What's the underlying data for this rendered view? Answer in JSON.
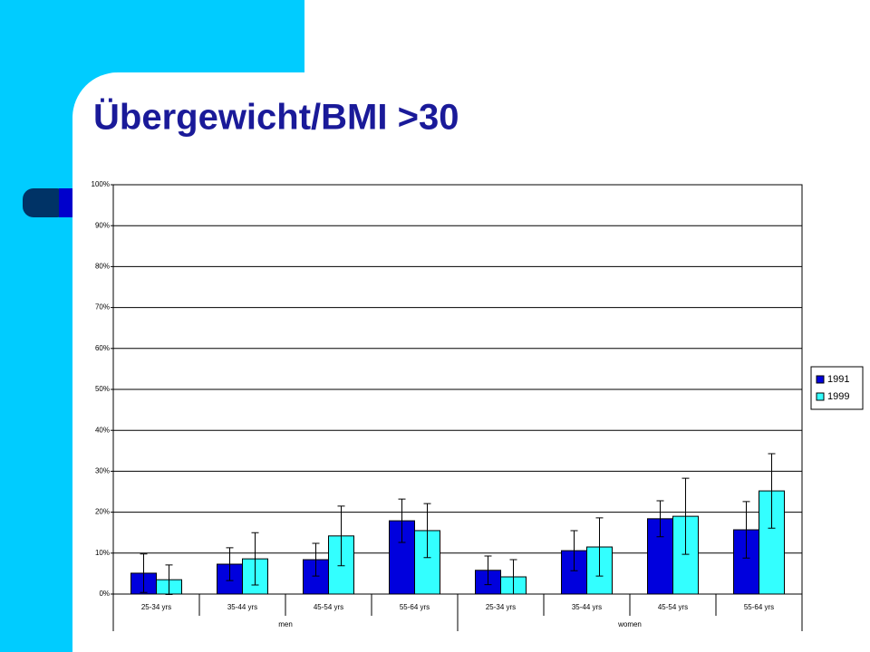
{
  "chart_data": {
    "type": "bar",
    "title": "Übergewicht/BMI >30",
    "categories": [
      "25-34 yrs",
      "35-44 yrs",
      "45-54 yrs",
      "55-64 yrs",
      "25-34 yrs",
      "35-44 yrs",
      "45-54 yrs",
      "55-64 yrs"
    ],
    "group_labels": [
      "men",
      "women"
    ],
    "series": [
      {
        "name": "1991",
        "color": "#0000dd",
        "values": [
          5.1,
          7.3,
          8.4,
          17.9,
          5.8,
          10.6,
          18.4,
          15.7
        ],
        "errors": [
          4.7,
          4.0,
          4.0,
          5.3,
          3.5,
          4.9,
          4.4,
          6.9
        ]
      },
      {
        "name": "1999",
        "color": "#33ffff",
        "values": [
          3.5,
          8.6,
          14.2,
          15.5,
          4.2,
          11.5,
          19.0,
          25.2
        ],
        "errors": [
          3.6,
          6.4,
          7.3,
          6.6,
          4.2,
          7.1,
          9.3,
          9.1
        ]
      }
    ],
    "ylim": [
      0,
      100
    ],
    "yticks": [
      {
        "value": 0,
        "label": "0%"
      },
      {
        "value": 10,
        "label": "10%"
      },
      {
        "value": 20,
        "label": "20%"
      },
      {
        "value": 30,
        "label": "30%"
      },
      {
        "value": 40,
        "label": "40%"
      },
      {
        "value": 50,
        "label": "50%"
      },
      {
        "value": 60,
        "label": "60%"
      },
      {
        "value": 70,
        "label": "70%"
      },
      {
        "value": 80,
        "label": "80%"
      },
      {
        "value": 90,
        "label": "90%"
      },
      {
        "value": 100,
        "label": "100%"
      }
    ],
    "grid": true,
    "legend": "right"
  }
}
